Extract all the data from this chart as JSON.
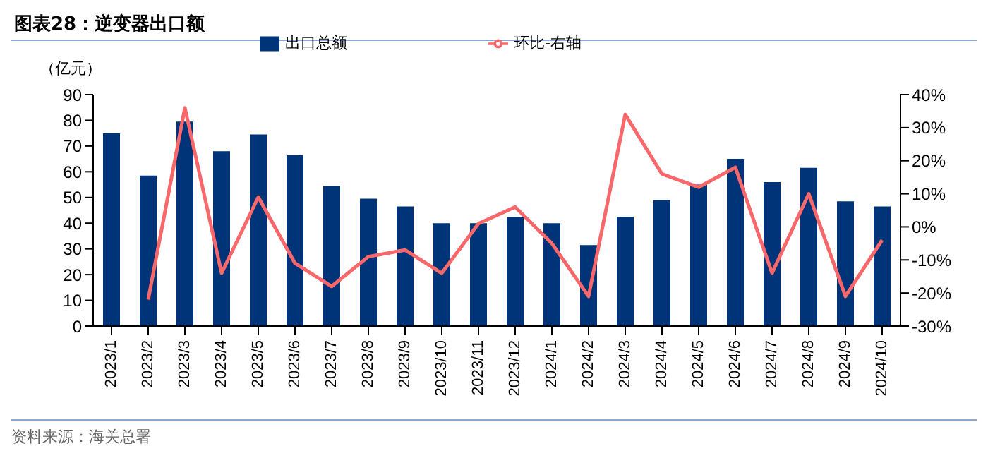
{
  "chart_data": {
    "type": "bar",
    "title": "图表28：逆变器出口额",
    "ylabel": "（亿元）",
    "categories": [
      "2023/1",
      "2023/2",
      "2023/3",
      "2023/4",
      "2023/5",
      "2023/6",
      "2023/7",
      "2023/8",
      "2023/9",
      "2023/10",
      "2023/11",
      "2023/12",
      "2024/1",
      "2024/2",
      "2024/3",
      "2024/4",
      "2024/5",
      "2024/6",
      "2024/7",
      "2024/8",
      "2024/9",
      "2024/10"
    ],
    "series": [
      {
        "name": "出口总额",
        "color": "#003478",
        "values": [
          75,
          58.5,
          79.5,
          68,
          74.5,
          66.5,
          54.5,
          49.5,
          46.5,
          40,
          40,
          42.5,
          40,
          31.5,
          42.5,
          49,
          55,
          65,
          56,
          61.5,
          48.5,
          46.5
        ]
      },
      {
        "name": "环比-右轴",
        "type": "line",
        "axis": "y2",
        "color": "#f8686a",
        "values": [
          null,
          -22,
          36,
          -14,
          9,
          -11,
          -18,
          -9,
          -7,
          -14,
          1,
          6,
          -5,
          -21,
          34,
          16,
          12,
          18,
          -14,
          10,
          -21,
          -4
        ]
      }
    ],
    "ylim": [
      0,
      90
    ],
    "yticks": [
      0,
      10,
      20,
      30,
      40,
      50,
      60,
      70,
      80,
      90
    ],
    "y2lim": [
      -30,
      40
    ],
    "y2ticks": [
      {
        "value": -30,
        "label": "-30%"
      },
      {
        "value": -20,
        "label": "-20%"
      },
      {
        "value": -10,
        "label": "-10%"
      },
      {
        "value": 0,
        "label": "0%"
      },
      {
        "value": 10,
        "label": "10%"
      },
      {
        "value": 20,
        "label": "20%"
      },
      {
        "value": 30,
        "label": "30%"
      },
      {
        "value": 40,
        "label": "40%"
      }
    ],
    "legend": "top",
    "grid": false,
    "marker": "none",
    "annotations": [
      "资料来源：海关总署"
    ]
  }
}
